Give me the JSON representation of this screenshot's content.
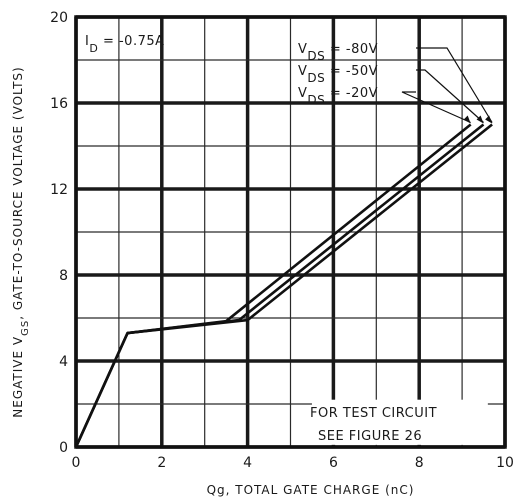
{
  "chart_data": {
    "type": "line",
    "title": "",
    "xlabel": "Qg,  TOTAL GATE CHARGE  (nC)",
    "ylabel_prefix": "NEGATIVE V",
    "ylabel_sub": "GS",
    "ylabel_suffix": ",  GATE-TO-SOURCE VOLTAGE  (VOLTS)",
    "xlim": [
      0,
      10
    ],
    "ylim": [
      0,
      20
    ],
    "xticks": [
      "0",
      "2",
      "4",
      "6",
      "8",
      "10"
    ],
    "yticks": [
      "0",
      "4",
      "8",
      "12",
      "16",
      "20"
    ],
    "grid": true,
    "condition": {
      "prefix": "I",
      "sub": "D",
      "suffix": " = -0.75A"
    },
    "note_line1": "FOR TEST CIRCUIT",
    "note_line2": "SEE FIGURE 26",
    "series": [
      {
        "name": "-80V",
        "label_prefix": "V",
        "label_sub": "DS",
        "label_suffix": " =   -80V",
        "x": [
          0,
          1.2,
          4.0,
          9.7
        ],
        "y": [
          0,
          5.3,
          5.9,
          15.0
        ]
      },
      {
        "name": "-50V",
        "label_prefix": "V",
        "label_sub": "DS",
        "label_suffix": " =   -50V",
        "x": [
          0,
          1.2,
          3.8,
          9.5
        ],
        "y": [
          0,
          5.3,
          5.9,
          15.0
        ]
      },
      {
        "name": "-20V",
        "label_prefix": "V",
        "label_sub": "DS",
        "label_suffix": " =   -20V",
        "x": [
          0,
          1.2,
          3.5,
          9.2
        ],
        "y": [
          0,
          5.3,
          5.85,
          15.0
        ]
      }
    ]
  }
}
